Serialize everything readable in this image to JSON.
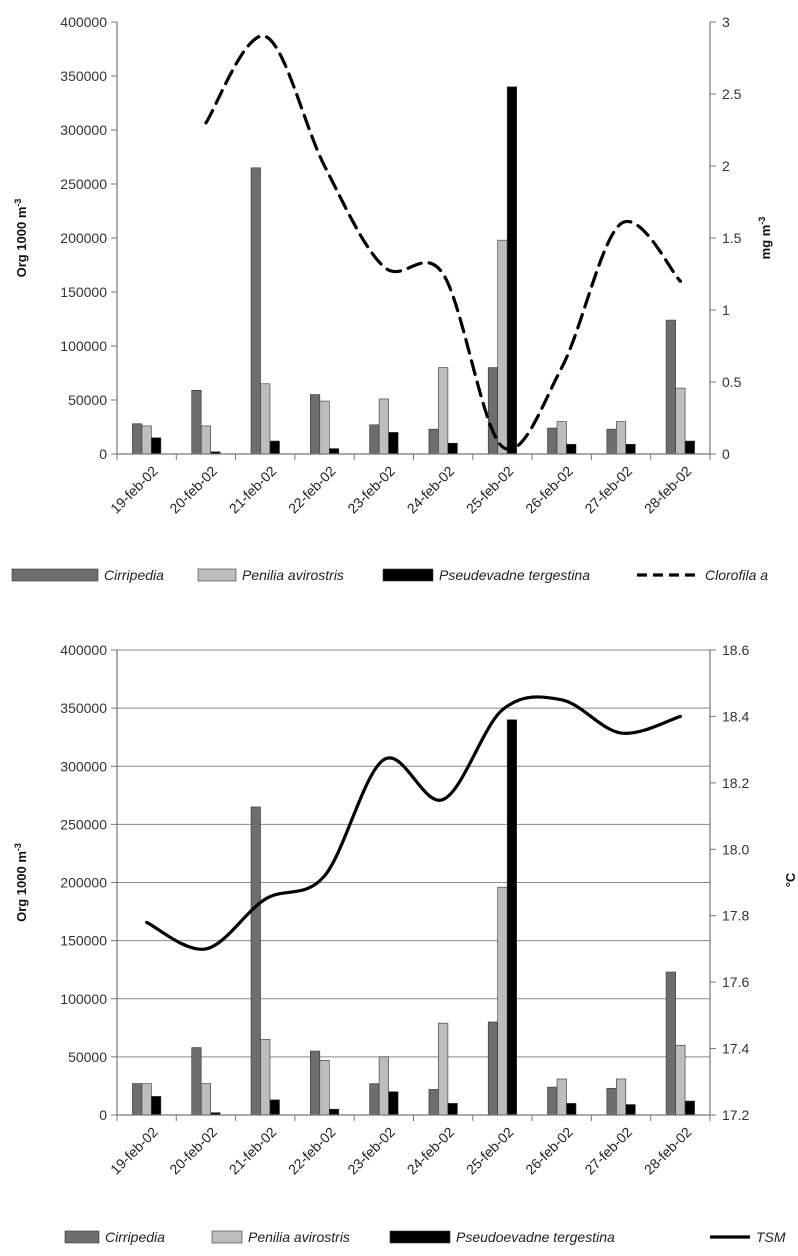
{
  "chart_data": [
    {
      "type": "bar",
      "categories": [
        "19-feb-02",
        "20-feb-02",
        "21-feb-02",
        "22-feb-02",
        "23-feb-02",
        "24-feb-02",
        "25-feb-02",
        "26-feb-02",
        "27-feb-02",
        "28-feb-02"
      ],
      "series": [
        {
          "name": "Cirripedia",
          "type": "bar",
          "color": "#6e6e6e",
          "values": [
            28000,
            59000,
            265000,
            55000,
            27000,
            23000,
            80000,
            24000,
            23000,
            124000
          ]
        },
        {
          "name": "Penilia avirostris",
          "type": "bar",
          "color": "#bdbdbd",
          "values": [
            26000,
            26000,
            65000,
            49000,
            51000,
            80000,
            198000,
            30000,
            30000,
            61000
          ]
        },
        {
          "name": "Pseudevadne tergestina",
          "type": "bar",
          "color": "#000000",
          "values": [
            15000,
            2000,
            12000,
            5000,
            20000,
            10000,
            340000,
            9000,
            9000,
            12000
          ]
        },
        {
          "name": "Clorofila a",
          "type": "line",
          "axis": "right",
          "dashed": true,
          "color": "#000000",
          "values": [
            null,
            2.3,
            2.9,
            2.0,
            1.3,
            1.25,
            0.05,
            0.6,
            1.6,
            1.2
          ]
        }
      ],
      "ylabel": "Org 1000 m",
      "ylabel_sup": "-3",
      "ylim": [
        0,
        400000
      ],
      "yticks": [
        0,
        50000,
        100000,
        150000,
        200000,
        250000,
        300000,
        350000,
        400000
      ],
      "y2label": "mg m",
      "y2label_sup": "-3",
      "y2lim": [
        0,
        3
      ],
      "y2ticks": [
        "0",
        "0.5",
        "1",
        "1.5",
        "2",
        "2.5",
        "3"
      ],
      "grid": false,
      "legend": "bottom"
    },
    {
      "type": "bar",
      "categories": [
        "19-feb-02",
        "20-feb-02",
        "21-feb-02",
        "22-feb-02",
        "23-feb-02",
        "24-feb-02",
        "25-feb-02",
        "26-feb-02",
        "27-feb-02",
        "28-feb-02"
      ],
      "series": [
        {
          "name": "Cirripedia",
          "type": "bar",
          "color": "#6e6e6e",
          "values": [
            27000,
            58000,
            265000,
            55000,
            27000,
            22000,
            80000,
            24000,
            23000,
            123000
          ]
        },
        {
          "name": "Penilia avirostris",
          "type": "bar",
          "color": "#bdbdbd",
          "values": [
            27000,
            27000,
            65000,
            47000,
            50000,
            79000,
            196000,
            31000,
            31000,
            60000
          ]
        },
        {
          "name": "Pseudoevadne tergestina",
          "type": "bar",
          "color": "#000000",
          "values": [
            16000,
            2000,
            13000,
            5000,
            20000,
            10000,
            340000,
            10000,
            9000,
            12000
          ]
        },
        {
          "name": "TSM",
          "type": "line",
          "axis": "right",
          "dashed": false,
          "color": "#000000",
          "values": [
            17.78,
            17.7,
            17.85,
            17.92,
            18.27,
            18.15,
            18.42,
            18.45,
            18.35,
            18.4
          ]
        }
      ],
      "ylabel": "Org 1000 m",
      "ylabel_sup": "-3",
      "ylim": [
        0,
        400000
      ],
      "yticks": [
        0,
        50000,
        100000,
        150000,
        200000,
        250000,
        300000,
        350000,
        400000
      ],
      "y2label": "°C",
      "y2lim": [
        17.2,
        18.6
      ],
      "y2ticks": [
        "17.2",
        "17.4",
        "17.6",
        "17.8",
        "18.0",
        "18.2",
        "18.4",
        "18.6"
      ],
      "grid": true,
      "legend": "bottom"
    }
  ]
}
